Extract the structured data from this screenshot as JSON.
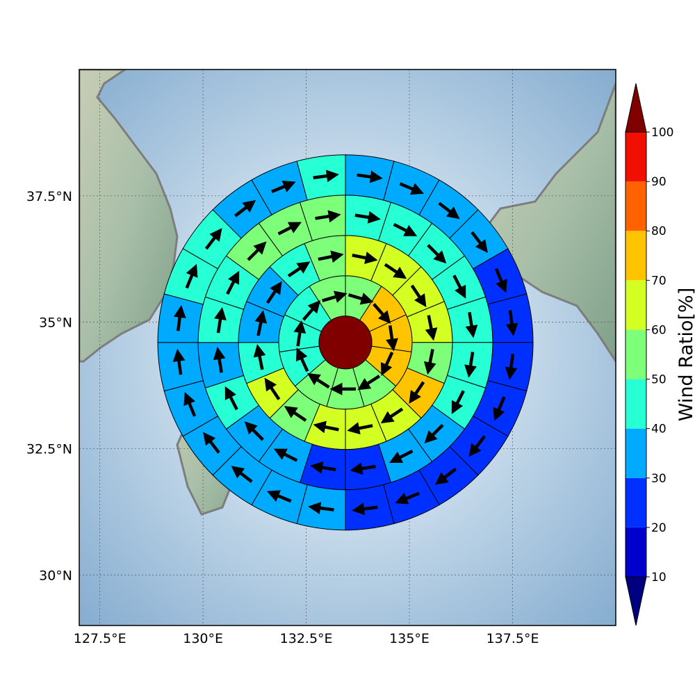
{
  "chart_data": {
    "type": "heatmap",
    "subtype": "polar sector wind-ratio map with wind-direction arrows on a relief basemap",
    "projection": "map",
    "xlim": [
      127,
      140
    ],
    "ylim": [
      29,
      40
    ],
    "x_ticks": [
      127.5,
      130,
      132.5,
      135,
      137.5
    ],
    "x_tick_labels": [
      "127.5°E",
      "130°E",
      "132.5°E",
      "135°E",
      "137.5°E"
    ],
    "y_ticks": [
      30,
      32.5,
      35,
      37.5
    ],
    "y_tick_labels": [
      "30°N",
      "32.5°N",
      "35°N",
      "37.5°N"
    ],
    "grid": true,
    "center": {
      "lon": 133.45,
      "lat": 34.6
    },
    "center_cell": {
      "ratio": 100
    },
    "rings": [
      {
        "ratios": [
          55,
          75,
          75,
          70,
          55,
          55,
          50,
          40,
          40,
          40,
          50
        ]
      },
      {
        "ratios": [
          60,
          65,
          60,
          60,
          55,
          70,
          60,
          60,
          60,
          55,
          65,
          45,
          35,
          35,
          45,
          55
        ]
      },
      {
        "ratios": [
          45,
          45,
          45,
          45,
          45,
          40,
          40,
          30,
          30,
          25,
          25,
          35,
          30,
          40,
          35,
          45,
          45,
          50,
          55,
          55
        ]
      },
      {
        "ratios": [
          35,
          35,
          30,
          30,
          25,
          25,
          25,
          20,
          20,
          25,
          25,
          25,
          35,
          30,
          35,
          35,
          35,
          35,
          35,
          40,
          40,
          35,
          35,
          40
        ]
      }
    ],
    "colorbar": {
      "label": "Wind Ratio[%]",
      "ticks": [
        10,
        20,
        30,
        40,
        50,
        60,
        70,
        80,
        90,
        100
      ],
      "tick_labels": [
        "10",
        "20",
        "30",
        "40",
        "50",
        "60",
        "70",
        "80",
        "90",
        "100"
      ],
      "levels": [
        0,
        10,
        20,
        30,
        40,
        50,
        60,
        70,
        80,
        90,
        100,
        110
      ],
      "colors": [
        "#000080",
        "#0000cd",
        "#0030ff",
        "#00aaff",
        "#27ffd5",
        "#7dff7a",
        "#d4ff23",
        "#ffc400",
        "#ff6200",
        "#f00f00",
        "#800000"
      ],
      "extend": "both"
    },
    "wind_arrows": "one black arrow per cell showing mean wind direction; flow is clockwise around the center"
  }
}
